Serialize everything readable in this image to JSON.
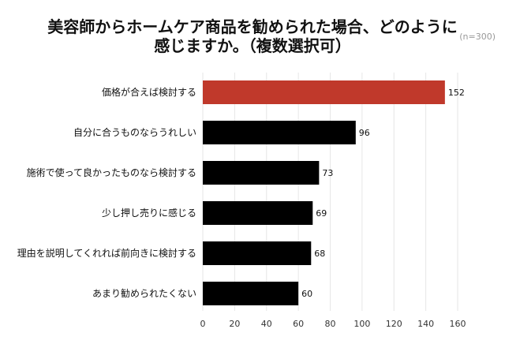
{
  "chart_data": {
    "type": "bar",
    "orientation": "horizontal",
    "title": [
      "美容師からホームケア商品を勧められた場合、どのように",
      "感じますか。（複数選択可）"
    ],
    "note": "(n=300)",
    "categories": [
      "価格が合えば検討する",
      "自分に合うものならうれしい",
      "施術で使って良かったものなら検討する",
      "少し押し売りに感じる",
      "理由を説明してくれれば前向きに検討する",
      "あまり勧められたくない"
    ],
    "values": [
      152,
      96,
      73,
      69,
      68,
      60
    ],
    "value_labels": [
      "152",
      "96",
      "73",
      "69",
      "68",
      "60"
    ],
    "xlim": [
      0,
      160
    ],
    "xticks": [
      0,
      20,
      40,
      60,
      80,
      100,
      120,
      140,
      160
    ],
    "tick_labels": [
      "0",
      "20",
      "40",
      "60",
      "80",
      "100",
      "120",
      "140",
      "160"
    ],
    "grid": "vertical",
    "colors": {
      "highlight": "#c0392b",
      "default": "#000000",
      "grid": "#e6e6e6"
    },
    "highlight_index": 0
  }
}
